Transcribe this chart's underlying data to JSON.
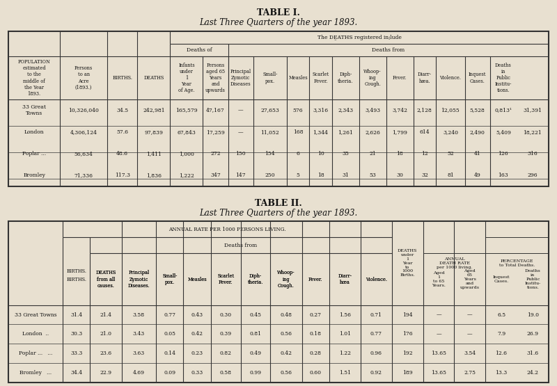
{
  "bg_color": "#e8e0d0",
  "table1_title": "TABLE I.",
  "table1_subtitle": "Last Three Quarters of the year 1893.",
  "table2_title": "TABLE II.",
  "table2_subtitle": "Last Three Quarters of the year 1893.",
  "table1_rows": [
    [
      "33 Great\nTowns",
      "10,326,040",
      "34.5",
      "242,981",
      "165,579",
      "47,167",
      "—",
      "27,653",
      "576",
      "3,316",
      "2,343",
      "3,493",
      "3,742",
      "2,128",
      "12,055",
      "5,528",
      "0,813¹",
      "31,391"
    ],
    [
      "London",
      "4,306,124",
      "57.6",
      "97,839",
      "67,843",
      "17,259",
      "—",
      "11,052",
      "168",
      "1,344",
      "1,261",
      "2,626",
      "1,799",
      "614",
      "3,240",
      "2,490",
      "5,409",
      "18,221"
    ],
    [
      "Poplar ...",
      "56,634",
      "48.6",
      "1,411",
      "1,000",
      "272",
      "150",
      "154",
      "6",
      "10",
      "35",
      "21",
      "18",
      "12",
      "52",
      "41",
      "126",
      "316"
    ],
    [
      "Bromley",
      "71,336",
      "117.3",
      "1,836",
      "1,222",
      "347",
      "147",
      "250",
      "5",
      "18",
      "31",
      "53",
      "30",
      "32",
      "81",
      "49",
      "163",
      "296"
    ]
  ],
  "table2_rows": [
    [
      "33 Great Towns",
      "31.4",
      "21.4",
      "3.58",
      "0.77",
      "0.43",
      "0.30",
      "0.45",
      "0.48",
      "0.27",
      "1.56",
      "0.71",
      "194",
      "—",
      "—",
      "6.5",
      "19.0"
    ],
    [
      "London  ..",
      "30.3",
      "21.0",
      "3.43",
      "0.05",
      "0.42",
      "0.39",
      "0.81",
      "0.56",
      "0.18",
      "1.01",
      "0.77",
      "176",
      "—",
      "—",
      "7.9",
      "26.9"
    ],
    [
      "Poplar ...   ...",
      "33.3",
      "23.6",
      "3.63",
      "0.14",
      "0.23",
      "0.82",
      "0.49",
      "0.42",
      "0.28",
      "1.22",
      "0.96",
      "192",
      "13.65",
      "3.54",
      "12.6",
      "31.6"
    ],
    [
      "Bromley   ...",
      "34.4",
      "22.9",
      "4.69",
      "0.09",
      "0.33",
      "0.58",
      "0.99",
      "0.56",
      "0.60",
      "1.51",
      "0.92",
      "189",
      "13.65",
      "2.75",
      "13.3",
      "24.2"
    ]
  ]
}
